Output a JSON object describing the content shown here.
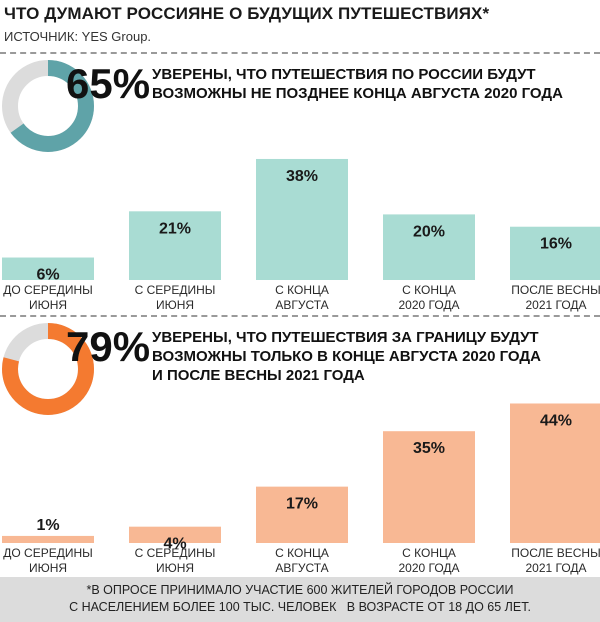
{
  "header": {
    "title": "ЧТО ДУМАЮТ РОССИЯНЕ О БУДУЩИХ ПУТЕШЕСТВИЯХ*",
    "source": "ИСТОЧНИК: YES Group."
  },
  "colors": {
    "domestic_bar": "#a9dcd3",
    "domestic_ring": "#5fa3a8",
    "abroad_bar": "#f8b894",
    "abroad_ring": "#f47a30",
    "ring_track": "#dcdcdc",
    "footnote_bg": "#dcdcdc"
  },
  "chart_data": [
    {
      "type": "bar",
      "headline_value": "65%",
      "headline_text": [
        "УВЕРЕНЫ, ЧТО ПУТЕШЕСТВИЯ ПО РОССИИ БУДУТ",
        "ВОЗМОЖНЫ НЕ ПОЗДНЕЕ КОНЦА АВГУСТА 2020 ГОДА"
      ],
      "donut_fraction": 0.65,
      "categories": [
        [
          "ДО СЕРЕДИНЫ",
          "ИЮНЯ"
        ],
        [
          "С СЕРЕДИНЫ",
          "ИЮНЯ"
        ],
        [
          "С КОНЦА",
          "АВГУСТА"
        ],
        [
          "С КОНЦА",
          "2020 ГОДА"
        ],
        [
          "ПОСЛЕ ВЕСНЫ",
          "2021 ГОДА"
        ]
      ],
      "values": [
        6,
        21,
        38,
        20,
        16
      ],
      "data_labels": [
        "6%",
        "21%",
        "38%",
        "20%",
        "16%"
      ]
    },
    {
      "type": "bar",
      "headline_value": "79%",
      "headline_text": [
        "УВЕРЕНЫ, ЧТО ПУТЕШЕСТВИЯ ЗА ГРАНИЦУ БУДУТ",
        "ВОЗМОЖНЫ ТОЛЬКО В КОНЦЕ АВГУСТА 2020 ГОДА",
        "И ПОСЛЕ ВЕСНЫ 2021 ГОДА"
      ],
      "donut_fraction": 0.79,
      "categories": [
        [
          "ДО СЕРЕДИНЫ",
          "ИЮНЯ"
        ],
        [
          "С СЕРЕДИНЫ",
          "ИЮНЯ"
        ],
        [
          "С КОНЦА",
          "АВГУСТА"
        ],
        [
          "С КОНЦА",
          "2020 ГОДА"
        ],
        [
          "ПОСЛЕ ВЕСНЫ",
          "2021 ГОДА"
        ]
      ],
      "values": [
        1,
        4,
        17,
        35,
        44
      ],
      "data_labels": [
        "1%",
        "4%",
        "17%",
        "35%",
        "44%"
      ]
    }
  ],
  "footnote": {
    "line1": "*В ОПРОСЕ ПРИНИМАЛО УЧАСТИЕ 600 ЖИТЕЛЕЙ ГОРОДОВ РОССИИ",
    "line2": "С НАСЕЛЕНИЕМ БОЛЕЕ 100 ТЫС. ЧЕЛОВЕК   В ВОЗРАСТЕ ОТ 18 ДО 65 ЛЕТ."
  }
}
